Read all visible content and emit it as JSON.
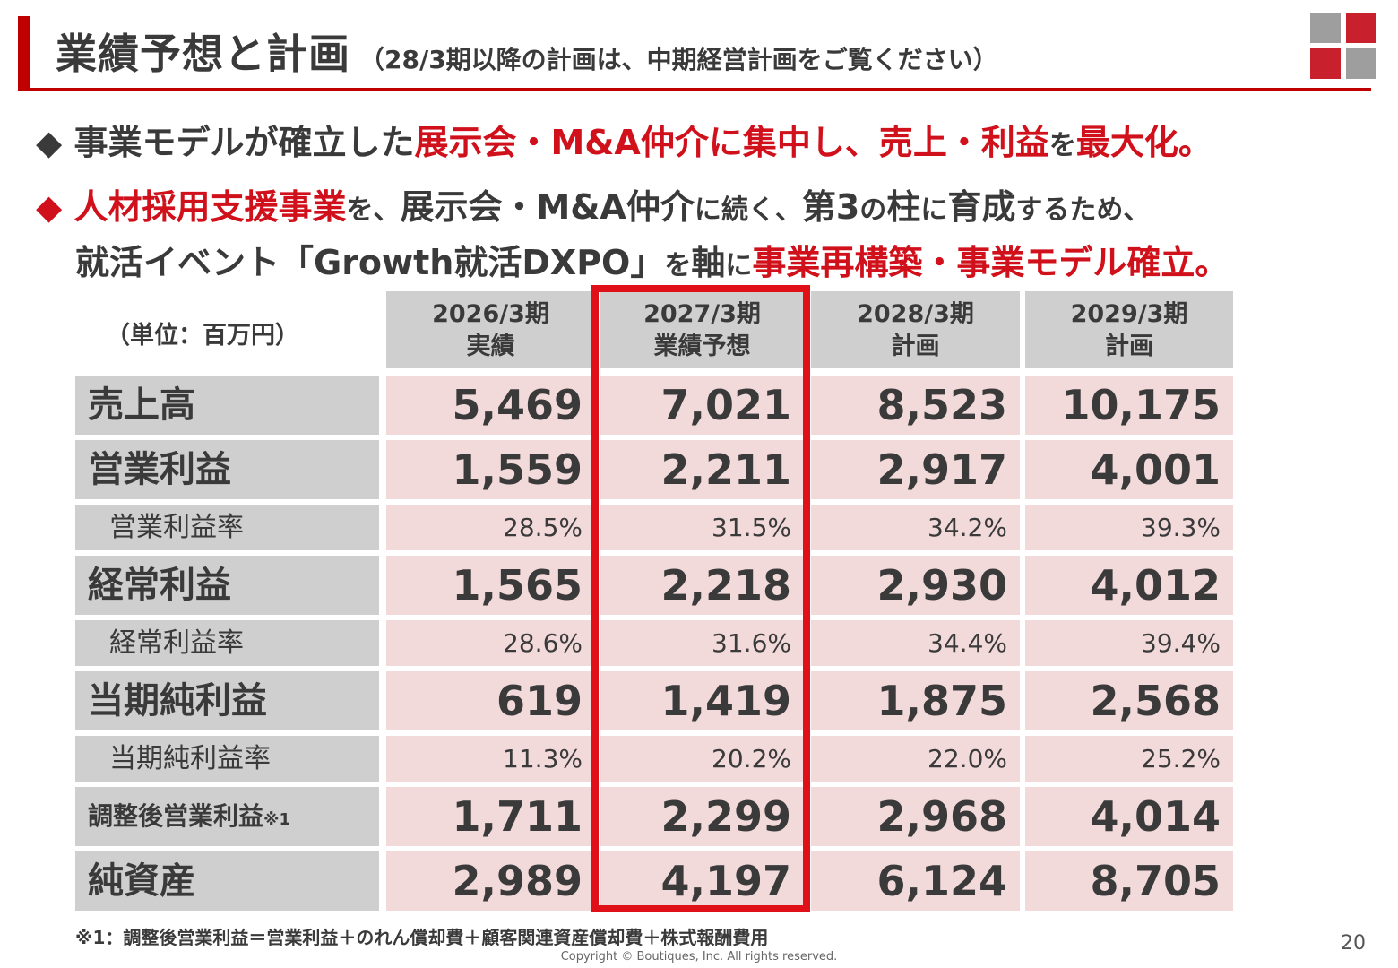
{
  "header": {
    "title": "業績予想と計画",
    "subtitle": "（28/3期以降の計画は、中期経営計画をご覧ください）"
  },
  "bullets": {
    "b1": {
      "mark": "◆",
      "t1": " 事業モデルが確立した",
      "t2": "展示会・M&A仲介に集中し、売上・利益",
      "t3": "を",
      "t4": "最大化。"
    },
    "b2": {
      "mark": "◆",
      "t1": " 人材採用支援事業",
      "t2": "を、",
      "t3": "展示会・M&A仲介",
      "t4": "に続く、",
      "t5": "第3",
      "t6": "の",
      "t7": "柱",
      "t8": "に",
      "t9": "育成",
      "t10": "するため、"
    },
    "b3": {
      "t1": "就活イベント「Growth就活DXPO」",
      "t2": "を",
      "t3": "軸",
      "t4": "に",
      "t5": "事業再構築・事業モデル確立。"
    }
  },
  "table": {
    "unit": "（単位：百万円）",
    "headers": [
      {
        "year": "2026/3期",
        "type": "実績"
      },
      {
        "year": "2027/3期",
        "type": "業績予想"
      },
      {
        "year": "2028/3期",
        "type": "計画"
      },
      {
        "year": "2029/3期",
        "type": "計画"
      }
    ],
    "rows": [
      {
        "label": "売上高",
        "values": [
          "5,469",
          "7,021",
          "8,523",
          "10,175"
        ]
      },
      {
        "label": "営業利益",
        "values": [
          "1,559",
          "2,211",
          "2,917",
          "4,001"
        ]
      },
      {
        "label": "営業利益率",
        "values": [
          "28.5%",
          "31.5%",
          "34.2%",
          "39.3%"
        ]
      },
      {
        "label": "経常利益",
        "values": [
          "1,565",
          "2,218",
          "2,930",
          "4,012"
        ]
      },
      {
        "label": "経常利益率",
        "values": [
          "28.6%",
          "31.6%",
          "34.4%",
          "39.4%"
        ]
      },
      {
        "label": "当期純利益",
        "values": [
          "619",
          "1,419",
          "1,875",
          "2,568"
        ]
      },
      {
        "label": "当期純利益率",
        "values": [
          "11.3%",
          "20.2%",
          "22.0%",
          "25.2%"
        ]
      },
      {
        "label": "調整後営業利益",
        "note": "※1",
        "values": [
          "1,711",
          "2,299",
          "2,968",
          "4,014"
        ]
      },
      {
        "label": "純資産",
        "values": [
          "2,989",
          "4,197",
          "6,124",
          "8,705"
        ]
      }
    ]
  },
  "footnote": "※1：調整後営業利益＝営業利益＋のれん償却費＋顧客関連資産償却費＋株式報酬費用",
  "page_number": "20",
  "copyright": "Copyright © Boutiques, Inc. All rights reserved.",
  "colors": {
    "accent_red": "#d0101a",
    "label_gray": "#d0cfcf",
    "cell_pink": "#f2d9da",
    "highlight_border": "#e01018"
  }
}
